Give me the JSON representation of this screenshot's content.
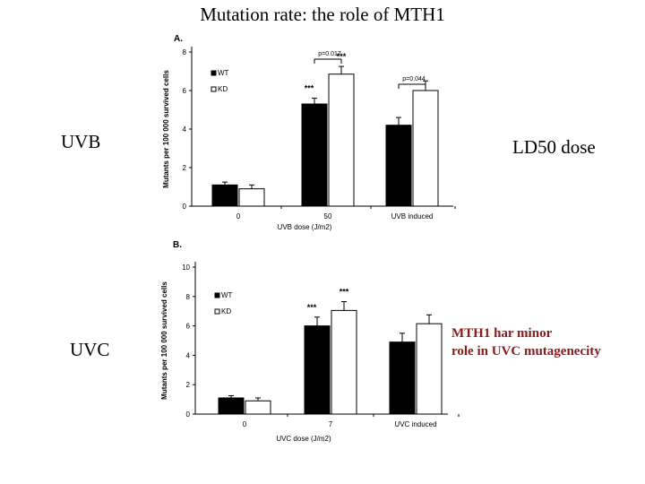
{
  "slide": {
    "title": "Mutation rate: the role of MTH1",
    "uvb_label": "UVB",
    "uvc_label": "UVC",
    "ld50_label": "LD50 dose",
    "note_line1": "MTH1 har minor",
    "note_line2": "role in UVC mutagenecity"
  },
  "colors": {
    "wt": "#000000",
    "kd": "#ffffff",
    "note": "#8b1a1a"
  },
  "chart_data": [
    {
      "type": "bar",
      "panel": "A.",
      "categories": [
        "0",
        "50",
        "UVB induced"
      ],
      "series": [
        {
          "name": "WT",
          "values": [
            1.1,
            5.3,
            4.2
          ],
          "errors": [
            0.15,
            0.3,
            0.4
          ]
        },
        {
          "name": "KD",
          "values": [
            0.9,
            6.85,
            6.0
          ],
          "errors": [
            0.2,
            0.4,
            0.5
          ]
        }
      ],
      "xlabel": "UVB dose (J/m2)",
      "ylabel": "Mutants per 100 000 survived cells",
      "ylim": [
        0,
        8
      ],
      "yticks": [
        0,
        2,
        4,
        6,
        8
      ],
      "legend": "top-left",
      "annotations": [
        {
          "text": "***",
          "category": 1,
          "series": 0
        },
        {
          "text": "***",
          "category": 1,
          "series": 1
        },
        {
          "text": "p=0.017",
          "category": 1
        },
        {
          "text": "p=0.044",
          "category": 2
        }
      ]
    },
    {
      "type": "bar",
      "panel": "B.",
      "categories": [
        "0",
        "7",
        "UVC induced"
      ],
      "series": [
        {
          "name": "WT",
          "values": [
            1.1,
            6.0,
            4.9
          ],
          "errors": [
            0.15,
            0.6,
            0.6
          ]
        },
        {
          "name": "KD",
          "values": [
            0.9,
            7.05,
            6.15
          ],
          "errors": [
            0.2,
            0.6,
            0.6
          ]
        }
      ],
      "xlabel": "UVC dose (J/m2)",
      "ylabel": "Mutants per 100 000 survived cells",
      "ylim": [
        0,
        10
      ],
      "yticks": [
        0,
        2,
        4,
        6,
        8,
        10
      ],
      "legend": "top-left",
      "annotations": [
        {
          "text": "***",
          "category": 1,
          "series": 0
        },
        {
          "text": "***",
          "category": 1,
          "series": 1
        }
      ]
    }
  ]
}
